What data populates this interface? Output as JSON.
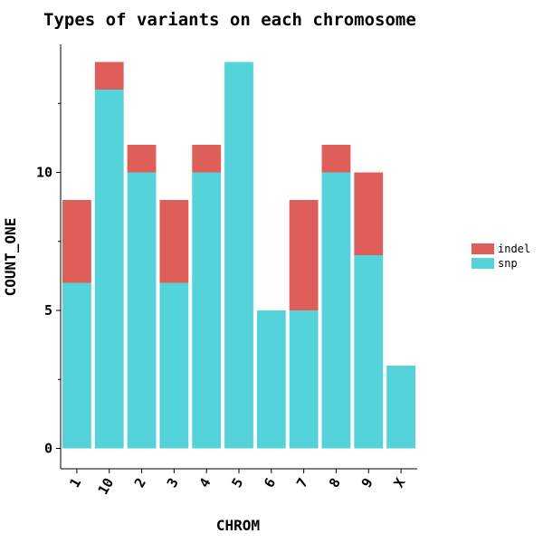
{
  "chart_data": {
    "type": "bar",
    "stacked": true,
    "title": "Types of variants on each chromosome",
    "xlabel": "CHROM",
    "ylabel": "COUNT_ONE",
    "categories": [
      "1",
      "10",
      "2",
      "3",
      "4",
      "5",
      "6",
      "7",
      "8",
      "9",
      "X"
    ],
    "series": [
      {
        "name": "snp",
        "color": "#55d3da",
        "values": [
          6,
          13,
          10,
          6,
          10,
          14,
          5,
          5,
          10,
          7,
          3
        ]
      },
      {
        "name": "indel",
        "color": "#de5f5a",
        "values": [
          3,
          1,
          1,
          3,
          1,
          0,
          0,
          4,
          1,
          3,
          0
        ]
      }
    ],
    "legend_order": [
      "indel",
      "snp"
    ],
    "legend_position": "right",
    "ylim": [
      -0.75,
      14.75
    ],
    "yticks_major": [
      0,
      5,
      10
    ],
    "yticks_minor": [
      2.5,
      7.5,
      12.5
    ],
    "grid": false
  }
}
